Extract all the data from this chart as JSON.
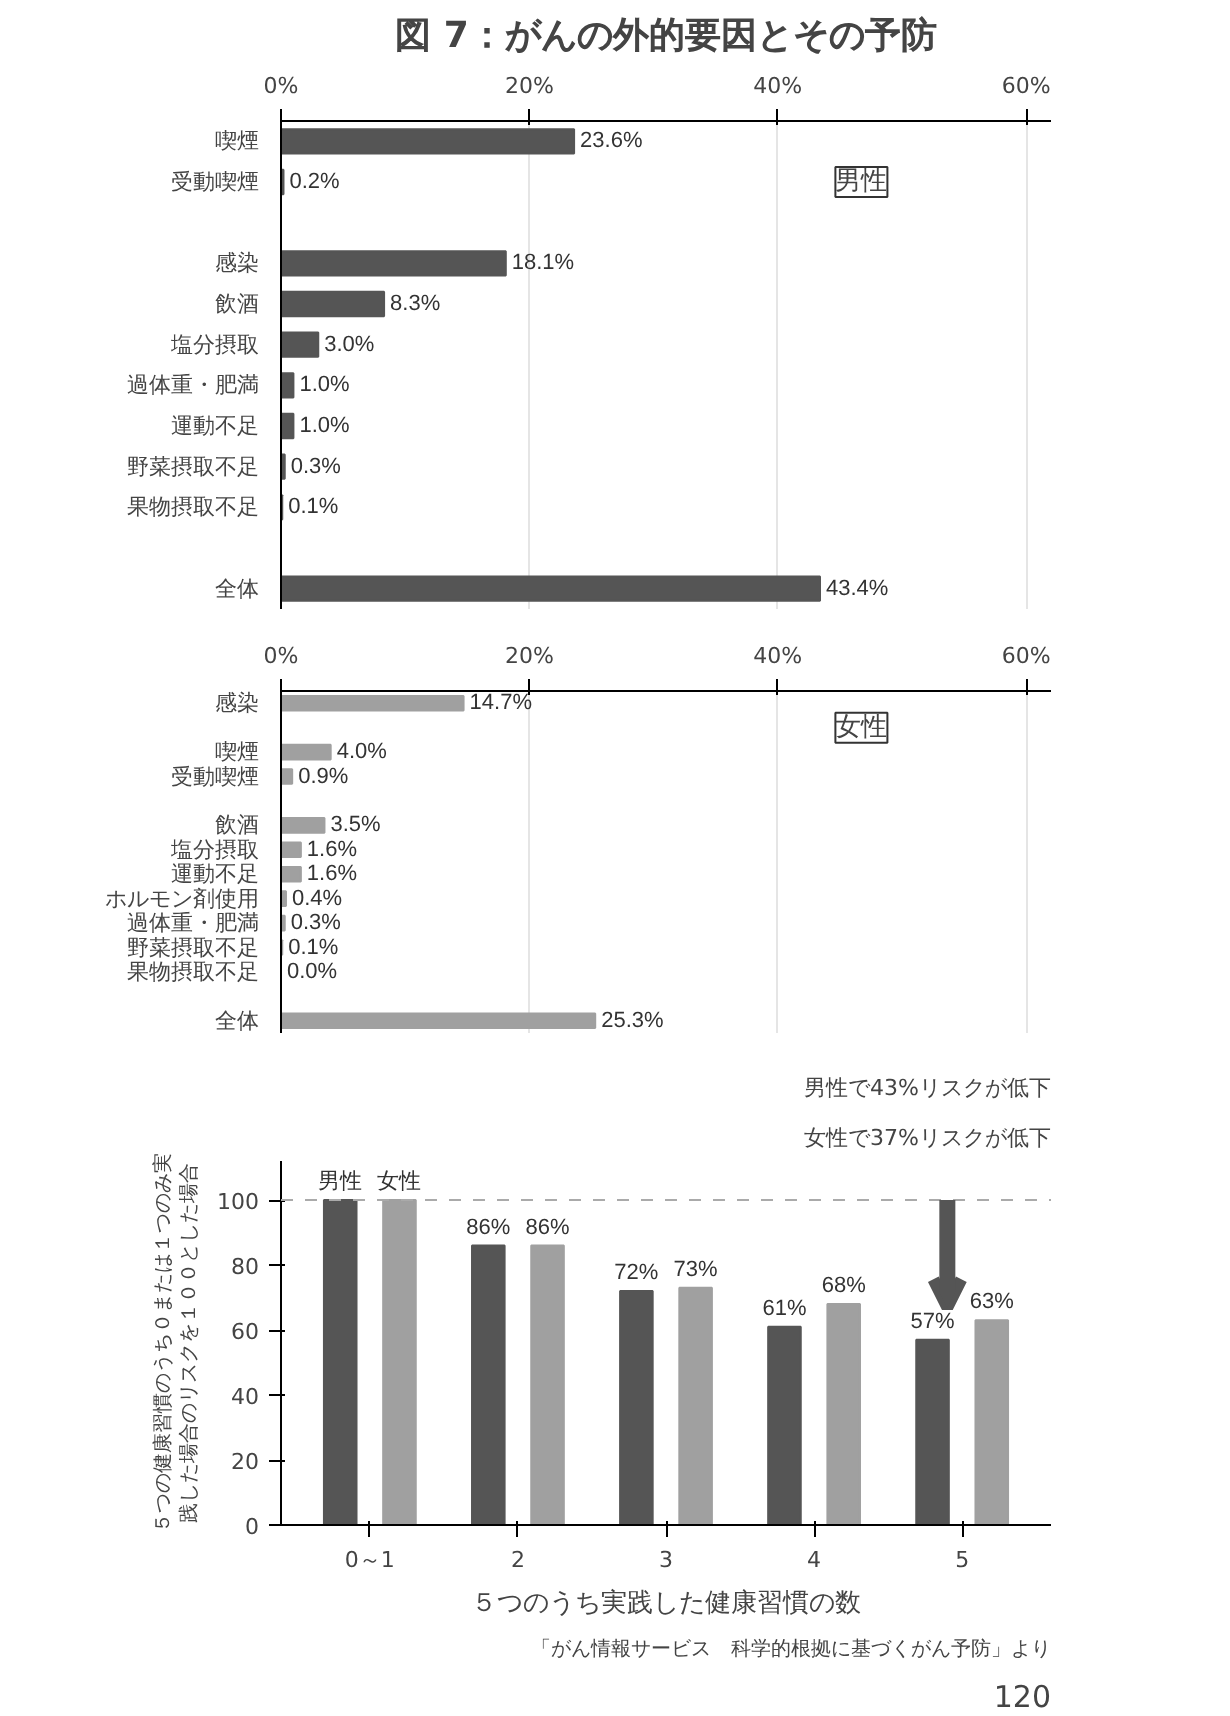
{
  "chart_data": [
    {
      "type": "bar",
      "title": "図 7：がんの外的要因とその予防",
      "orientation": "horizontal",
      "color": "#555555",
      "categories": [
        "喫煙",
        "受動喫煙",
        null,
        "感染",
        "飲酒",
        "塩分摂取",
        "過体重・肥満",
        "運動不足",
        "野菜摂取不足",
        "果物摂取不足",
        null,
        "全体"
      ],
      "values": [
        23.6,
        0.2,
        null,
        18.1,
        8.3,
        3.0,
        1.0,
        1.0,
        0.3,
        0.1,
        null,
        43.4
      ],
      "value_labels": [
        "23.6%",
        "0.2%",
        null,
        "18.1%",
        "8.3%",
        "3.0%",
        "1.0%",
        "1.0%",
        "0.3%",
        "0.1%",
        null,
        "43.4%"
      ],
      "xlim": [
        0,
        62
      ],
      "xticks": [
        {
          "value": 0,
          "label": "0%"
        },
        {
          "value": 20,
          "label": "20%"
        },
        {
          "value": 40,
          "label": "40%"
        },
        {
          "value": 60,
          "label": "60%"
        }
      ],
      "grid": "x",
      "annotations": [
        "男性"
      ]
    },
    {
      "type": "bar",
      "orientation": "horizontal",
      "color": "#a0a0a0",
      "categories": [
        "感染",
        null,
        "喫煙",
        "受動喫煙",
        null,
        "飲酒",
        "塩分摂取",
        "運動不足",
        "ホルモン剤使用",
        "過体重・肥満",
        "野菜摂取不足",
        "果物摂取不足",
        null,
        "全体"
      ],
      "values": [
        14.7,
        null,
        4.0,
        0.9,
        null,
        3.5,
        1.6,
        1.6,
        0.4,
        0.3,
        0.1,
        0.0,
        null,
        25.3
      ],
      "value_labels": [
        "14.7%",
        null,
        "4.0%",
        "0.9%",
        null,
        "3.5%",
        "1.6%",
        "1.6%",
        "0.4%",
        "0.3%",
        "0.1%",
        "0.0%",
        null,
        "25.3%"
      ],
      "xlim": [
        0,
        62
      ],
      "xticks": [
        {
          "value": 0,
          "label": "0%"
        },
        {
          "value": 20,
          "label": "20%"
        },
        {
          "value": 40,
          "label": "40%"
        },
        {
          "value": 60,
          "label": "60%"
        }
      ],
      "grid": "x",
      "annotations": [
        "女性"
      ]
    },
    {
      "type": "bar",
      "xlabel": "５つのうち実践した健康習慣の数",
      "ylabel": "５つの健康習慣のうち０または１つのみ実践した場合のリスクを１００とした場合",
      "categories": [
        "0～1",
        "2",
        "3",
        "4",
        "5"
      ],
      "series": [
        {
          "name": "男性",
          "color": "#555555",
          "values": [
            100,
            86,
            72,
            61,
            57
          ],
          "value_labels": [
            null,
            "86%",
            "72%",
            "61%",
            "57%"
          ]
        },
        {
          "name": "女性",
          "color": "#a0a0a0",
          "values": [
            100,
            86,
            73,
            68,
            63
          ],
          "value_labels": [
            null,
            "86%",
            "73%",
            "68%",
            "63%"
          ]
        }
      ],
      "ylim": [
        0,
        112
      ],
      "yticks": [
        0,
        20,
        40,
        60,
        80,
        100
      ],
      "ref_lines": [
        {
          "axis": "y",
          "value": 100,
          "label": null,
          "color": "#aaaaaa",
          "line_style": "dashed"
        }
      ],
      "annotations": [
        "男性で43%リスクが低下",
        "女性で37%リスクが低下",
        "「がん情報サービス　科学的根拠に基づくがん予防」より",
        "120"
      ]
    }
  ]
}
